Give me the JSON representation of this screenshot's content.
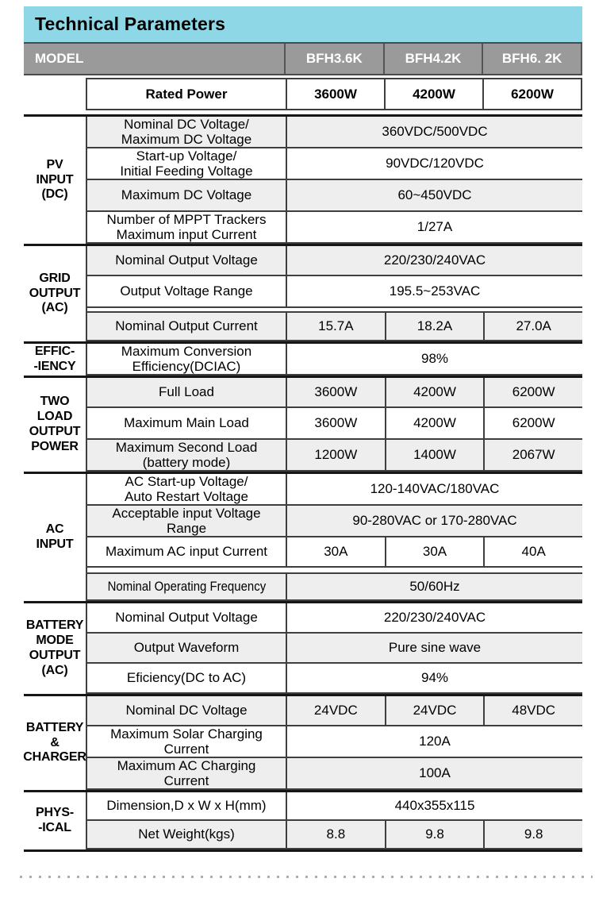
{
  "title": "Technical Parameters",
  "colors": {
    "header_bg": "#8ed7e7",
    "model_row_bg": "#9a9a9a",
    "shaded_row_bg": "#eeeeee",
    "border": "#3f3f3f"
  },
  "model_row": {
    "label": "MODEL",
    "models": [
      "BFH3.6K",
      "BFH4.2K",
      "BFH6. 2K"
    ]
  },
  "rated_power": {
    "param": "Rated Power",
    "values": [
      "3600W",
      "4200W",
      "6200W"
    ]
  },
  "sections": [
    {
      "label": "PV\nINPUT\n(DC)",
      "rows": [
        {
          "param": "Nominal DC Voltage/\nMaximum DC Voltage",
          "value": "360VDC/500VDC"
        },
        {
          "param": "Start-up Voltage/\nInitial Feeding Voltage",
          "value": "90VDC/120VDC"
        },
        {
          "param": "Maximum DC Voltage",
          "value": "60~450VDC"
        },
        {
          "param": "Number of MPPT Trackers\nMaximum input Current",
          "value": "1/27A"
        }
      ]
    },
    {
      "label": "GRID\nOUTPUT\n(AC)",
      "rows": [
        {
          "param": "Nominal Output Voltage",
          "value": "220/230/240VAC"
        },
        {
          "param": "Output Voltage Range",
          "value": "195.5~253VAC"
        },
        {
          "param": "Nominal Output Current",
          "values": [
            "15.7A",
            "18.2A",
            "27.0A"
          ]
        }
      ]
    },
    {
      "label": "EFFIC-\n-IENCY",
      "rows": [
        {
          "param": "Maximum Conversion\nEfficiency(DCIAC)",
          "value": "98%"
        }
      ]
    },
    {
      "label": "TWO\nLOAD\nOUTPUT\nPOWER",
      "rows": [
        {
          "param": "Full Load",
          "values": [
            "3600W",
            "4200W",
            "6200W"
          ]
        },
        {
          "param": "Maximum Main Load",
          "values": [
            "3600W",
            "4200W",
            "6200W"
          ]
        },
        {
          "param": "Maximum Second Load\n(battery mode)",
          "values": [
            "1200W",
            "1400W",
            "2067W"
          ]
        }
      ]
    },
    {
      "label": "AC\nINPUT",
      "rows": [
        {
          "param": "AC Start-up Voltage/\nAuto Restart Voltage",
          "value": "120-140VAC/180VAC"
        },
        {
          "param": "Acceptable input Voltage\nRange",
          "value": "90-280VAC or 170-280VAC"
        },
        {
          "param": "Maximum AC input Current",
          "values": [
            "30A",
            "30A",
            "40A"
          ]
        },
        {
          "param": "Nominal Operating Frequency",
          "value": "50/60Hz"
        }
      ]
    },
    {
      "label": "BATTERY\nMODE\nOUTPUT\n(AC)",
      "rows": [
        {
          "param": "Nominal Output Voltage",
          "value": "220/230/240VAC"
        },
        {
          "param": "Output Waveform",
          "value": "Pure sine wave"
        },
        {
          "param": "Eficiency(DC to AC)",
          "value": "94%"
        }
      ]
    },
    {
      "label": "BATTERY\n&\nCHARGER",
      "rows": [
        {
          "param": "Nominal DC Voltage",
          "values": [
            "24VDC",
            "24VDC",
            "48VDC"
          ]
        },
        {
          "param": "Maximum Solar Charging\nCurrent",
          "value": "120A"
        },
        {
          "param": "Maximum AC Charging\nCurrent",
          "value": "100A"
        }
      ]
    },
    {
      "label": "PHYS-\n-ICAL",
      "rows": [
        {
          "param": "Dimension,D x W x H(mm)",
          "value": "440x355x115"
        },
        {
          "param": "Net Weight(kgs)",
          "values": [
            "8.8",
            "9.8",
            "9.8"
          ]
        }
      ]
    }
  ]
}
